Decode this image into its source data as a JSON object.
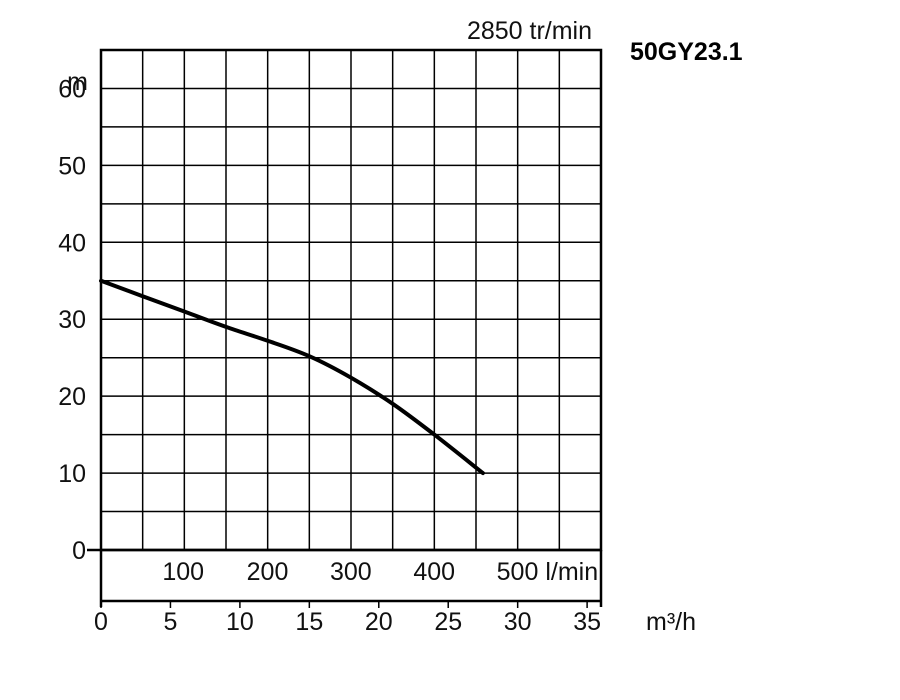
{
  "chart_data": {
    "type": "line",
    "model": "50GY23.1",
    "speed_label": "2850 tr/min",
    "ylabel": "m",
    "ylim": [
      0,
      65
    ],
    "y_ticks": [
      "0",
      "10",
      "20",
      "30",
      "40",
      "50",
      "60"
    ],
    "x_lpm_ticks": [
      "100",
      "200",
      "300",
      "400",
      "500 l/min"
    ],
    "x_lpm_values": [
      100,
      200,
      300,
      400,
      500
    ],
    "x_m3h_ticks": [
      "0",
      "5",
      "10",
      "15",
      "20",
      "25",
      "30",
      "35"
    ],
    "x_m3h_values": [
      0,
      5,
      10,
      15,
      20,
      25,
      30,
      35
    ],
    "xlabel": "m³/h",
    "xlim_m3h": [
      0,
      36
    ],
    "grid": true,
    "series": [
      {
        "x": [
          0,
          3,
          6,
          9,
          12,
          15,
          18,
          21,
          24,
          27.5
        ],
        "y": [
          35,
          33,
          31,
          29,
          27.2,
          25.2,
          22.4,
          19,
          15,
          10
        ]
      }
    ]
  }
}
